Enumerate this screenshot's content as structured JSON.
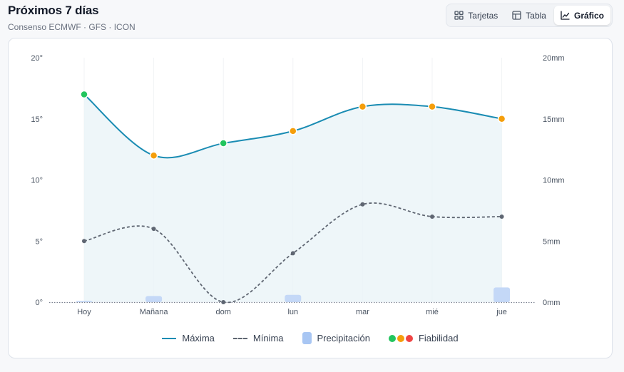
{
  "header": {
    "title": "Próximos 7 días",
    "subtitle": "Consenso ECMWF · GFS · ICON"
  },
  "view_switch": {
    "options": [
      {
        "label": "Tarjetas",
        "icon": "grid-icon",
        "active": false
      },
      {
        "label": "Tabla",
        "icon": "table-icon",
        "active": false
      },
      {
        "label": "Gráfico",
        "icon": "line-chart-icon",
        "active": true
      }
    ]
  },
  "legend": {
    "max_label": "Máxima",
    "min_label": "Mínima",
    "precip_label": "Precipitación",
    "reliability_label": "Fiabilidad",
    "reliability_colors": [
      "#22c55e",
      "#f59e0b",
      "#ef4444"
    ]
  },
  "colors": {
    "max_line": "#1a8cb3",
    "max_fill": "#eaf4f8",
    "min_line": "#5f6672",
    "precip_bar": "#c4d8f7",
    "high": "#22c55e",
    "medium": "#f59e0b",
    "low": "#ef4444"
  },
  "chart_data": {
    "type": "line",
    "categories": [
      "Hoy",
      "Mañana",
      "dom",
      "lun",
      "mar",
      "mié",
      "jue"
    ],
    "series": [
      {
        "name": "Máxima",
        "values": [
          17,
          12,
          13,
          14,
          16,
          16,
          15
        ],
        "reliability": [
          "high",
          "medium",
          "high",
          "medium",
          "medium",
          "medium",
          "medium"
        ]
      },
      {
        "name": "Mínima",
        "values": [
          5,
          6,
          0,
          4,
          8,
          7,
          7
        ]
      },
      {
        "name": "Precipitación",
        "axis": "right",
        "values": [
          0.1,
          0.5,
          0,
          0.6,
          0,
          0,
          1.2
        ]
      }
    ],
    "y_left": {
      "min": 0,
      "max": 20,
      "ticks": [
        "0°",
        "5°",
        "10°",
        "15°",
        "20°"
      ]
    },
    "y_right": {
      "min": 0,
      "max": 20,
      "ticks": [
        "0mm",
        "5mm",
        "10mm",
        "15mm",
        "20mm"
      ]
    },
    "legend_position": "bottom",
    "grid": "vertical"
  }
}
